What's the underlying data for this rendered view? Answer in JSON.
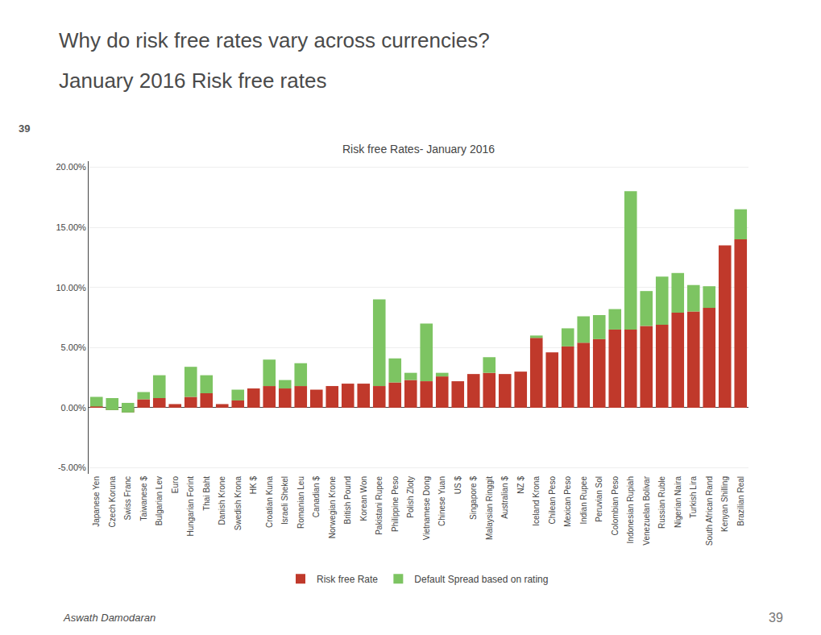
{
  "chart_data": {
    "type": "bar",
    "title": "Risk free Rates- January 2016",
    "annotations": [
      "Why do risk free rates vary across currencies?",
      "January 2016 Risk free rates",
      "39",
      "Aswath Damodaran",
      "39"
    ],
    "categories": [
      "Japanese Yen",
      "Czech Koruna",
      "Swiss Franc",
      "Taiwanese $",
      "Bulgarian Lev",
      "Euro",
      "Hungarian Forint",
      "Thai Baht",
      "Danish Krone",
      "Swedish Krona",
      "HK $",
      "Croatian Kuna",
      "Israeli Shekel",
      "Romanian Leu",
      "Canadian $",
      "Norwegian Krone",
      "British Pound",
      "Korean Won",
      "Pakistani Rupee",
      "Philippine Peso",
      "Polish Zloty",
      "Vietnamese Dong",
      "Chinese Yuan",
      "US $",
      "Singapore $",
      "Malaysian Ringgit",
      "Australian $",
      "NZ $",
      "Iceland Krona",
      "Chilean Peso",
      "Mexican Peso",
      "Indian Rupee",
      "Peruvian Sol",
      "Colombian Peso",
      "Indonesian Rupiah",
      "Venezuelan Bolivar",
      "Russian Ruble",
      "Nigerian Naira",
      "Turkish Lira",
      "South African Rand",
      "Kenyan Shilling",
      "Brazilian Real"
    ],
    "series": [
      {
        "name": "Risk free Rate",
        "color": "#C0392B",
        "values": [
          0.001,
          -0.002,
          -0.004,
          0.007,
          0.008,
          0.003,
          0.009,
          0.012,
          0.003,
          0.006,
          0.016,
          0.018,
          0.016,
          0.018,
          0.015,
          0.018,
          0.02,
          0.02,
          0.018,
          0.021,
          0.023,
          0.022,
          0.026,
          0.022,
          0.028,
          0.029,
          0.028,
          0.03,
          0.058,
          0.046,
          0.051,
          0.054,
          0.057,
          0.065,
          0.065,
          0.068,
          0.069,
          0.079,
          0.08,
          0.083,
          0.135,
          0.14
        ]
      },
      {
        "name": "Default Spread based on rating",
        "color": "#7DC462",
        "values": [
          0.008,
          0.01,
          0.008,
          0.006,
          0.019,
          0.0,
          0.025,
          0.015,
          0.0,
          0.009,
          0.0,
          0.022,
          0.007,
          0.019,
          0.0,
          0.0,
          0.0,
          0.0,
          0.072,
          0.02,
          0.006,
          0.048,
          0.003,
          0.0,
          0.0,
          0.013,
          0.0,
          0.0,
          0.002,
          0.0,
          0.015,
          0.022,
          0.02,
          0.017,
          0.115,
          0.029,
          0.04,
          0.033,
          0.022,
          0.018,
          0.0,
          0.025
        ]
      }
    ],
    "stacked": true,
    "ylim": [
      -0.055,
      0.205
    ],
    "yticks": [
      {
        "value": -0.05,
        "label": "-5.00%"
      },
      {
        "value": 0.0,
        "label": "0.00%"
      },
      {
        "value": 0.05,
        "label": "5.00%"
      },
      {
        "value": 0.1,
        "label": "10.00%"
      },
      {
        "value": 0.15,
        "label": "15.00%"
      },
      {
        "value": 0.2,
        "label": "20.00%"
      }
    ],
    "grid": true,
    "legend": "bottom"
  }
}
